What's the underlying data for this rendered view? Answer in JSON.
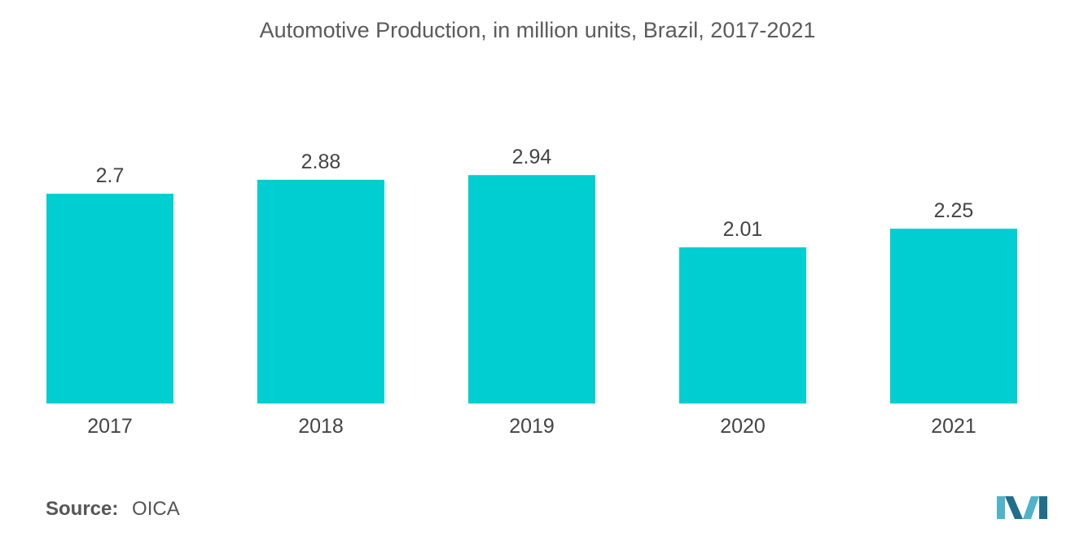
{
  "colors": {
    "bar": "#00CED1",
    "text": "#444444",
    "logo_dark": "#1f6f8b",
    "logo_light": "#4fb3c9"
  },
  "source": {
    "label": "Source:",
    "value": "OICA"
  },
  "logo_icon": "mordor-intelligence-logo-icon",
  "chart_data": {
    "type": "bar",
    "title": "Automotive Production, in million units, Brazil, 2017-2021",
    "xlabel": "",
    "ylabel": "",
    "categories": [
      "2017",
      "2018",
      "2019",
      "2020",
      "2021"
    ],
    "values": [
      2.7,
      2.88,
      2.94,
      2.01,
      2.25
    ],
    "value_labels": [
      "2.7",
      "2.88",
      "2.94",
      "2.01",
      "2.25"
    ],
    "ylim": [
      0,
      3.0
    ],
    "grid": false,
    "legend": "none"
  }
}
